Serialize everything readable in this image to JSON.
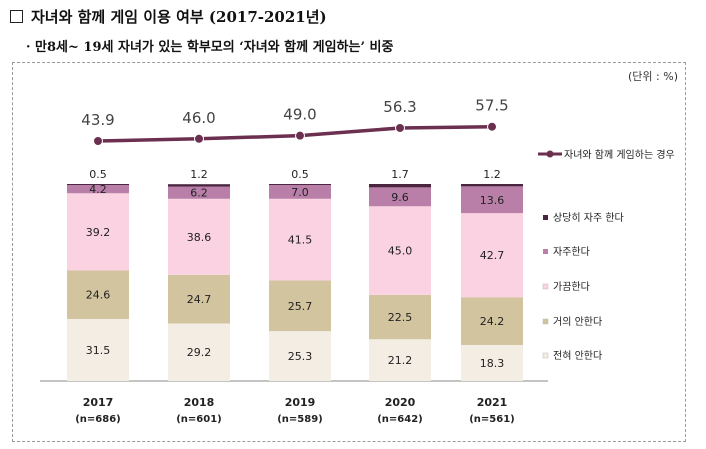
{
  "title": "자녀와 함께 게임 이용 여부 (2017-2021년)",
  "subtitle": "· 만8세~ 19세 자녀가 있는 학부모의 ‘자녀와 함께 게임하는’ 비중",
  "chart_data": {
    "type": "bar",
    "stacked": true,
    "unit_label": "(단위 : %)",
    "categories": [
      "2017",
      "2018",
      "2019",
      "2020",
      "2021"
    ],
    "sample_sizes": [
      "(n=686)",
      "(n=601)",
      "(n=589)",
      "(n=642)",
      "(n=561)"
    ],
    "series": [
      {
        "name": "전혀 안한다",
        "color": "#f3ede4",
        "values": [
          31.5,
          29.2,
          25.3,
          21.2,
          18.3
        ]
      },
      {
        "name": "거의 안한다",
        "color": "#d2c49e",
        "values": [
          24.6,
          24.7,
          25.7,
          22.5,
          24.2
        ]
      },
      {
        "name": "가끔한다",
        "color": "#fbd2e1",
        "values": [
          39.2,
          38.6,
          41.5,
          45.0,
          42.7
        ]
      },
      {
        "name": "자주한다",
        "color": "#b97fa8",
        "values": [
          4.2,
          6.2,
          7.0,
          9.6,
          13.6
        ]
      },
      {
        "name": "상당히 자주 한다",
        "color": "#4a2540",
        "values": [
          0.5,
          1.2,
          0.5,
          1.7,
          1.2
        ]
      }
    ],
    "line": {
      "name": "자녀와 함께 게임하는 경우",
      "color": "#6b2f4f",
      "values": [
        43.9,
        46.0,
        49.0,
        56.3,
        57.5
      ]
    },
    "ylim": [
      0,
      100
    ],
    "legend_position": "right"
  }
}
